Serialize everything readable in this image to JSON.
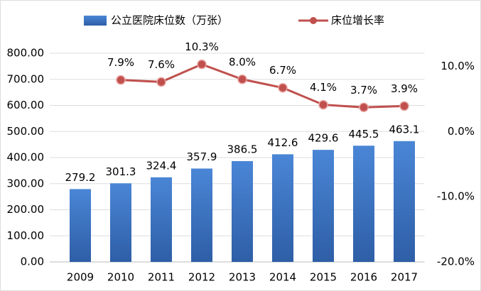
{
  "chart_data": {
    "type": "bar-line",
    "categories": [
      "2009",
      "2010",
      "2011",
      "2012",
      "2013",
      "2014",
      "2015",
      "2016",
      "2017"
    ],
    "series": [
      {
        "name": "公立医院床位数（万张）",
        "type": "bar",
        "color": "#3f74c2",
        "values": [
          279.2,
          301.3,
          324.4,
          357.9,
          386.5,
          412.6,
          429.6,
          445.5,
          463.1
        ]
      },
      {
        "name": "床位增长率",
        "type": "line",
        "color": "#c0504d",
        "axis": "y2",
        "values": [
          null,
          7.9,
          7.6,
          10.3,
          8.0,
          6.7,
          4.1,
          3.7,
          3.9
        ],
        "value_labels": [
          null,
          "7.9%",
          "7.6%",
          "10.3%",
          "8.0%",
          "6.7%",
          "4.1%",
          "3.7%",
          "3.9%"
        ]
      }
    ],
    "ylim": [
      0,
      800
    ],
    "yticks": [
      {
        "value": 0,
        "label": "0.00"
      },
      {
        "value": 100,
        "label": "100.00"
      },
      {
        "value": 200,
        "label": "200.00"
      },
      {
        "value": 300,
        "label": "300.00"
      },
      {
        "value": 400,
        "label": "400.00"
      },
      {
        "value": 500,
        "label": "500.00"
      },
      {
        "value": 600,
        "label": "600.00"
      },
      {
        "value": 700,
        "label": "700.00"
      },
      {
        "value": 800,
        "label": "800.00"
      }
    ],
    "y2lim": [
      -20,
      12
    ],
    "y2ticks": [
      {
        "value": -20,
        "label": "-20.0%"
      },
      {
        "value": -10,
        "label": "-10.0%"
      },
      {
        "value": 0,
        "label": "0.0%"
      },
      {
        "value": 10,
        "label": "10.0%"
      }
    ],
    "grid": true
  }
}
